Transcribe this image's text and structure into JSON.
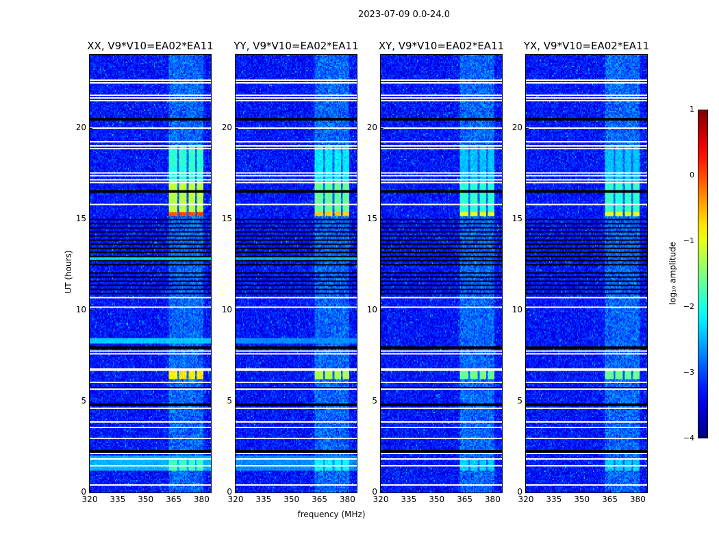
{
  "chart_data": {
    "type": "heatmap",
    "suptitle": "2023-07-09 0.0-24.0",
    "xlabel": "frequency (MHz)",
    "ylabel": "UT (hours)",
    "xlim": [
      320,
      385
    ],
    "ylim": [
      0,
      24
    ],
    "xticks": [
      "320",
      "335",
      "350",
      "365",
      "380"
    ],
    "xtick_values": [
      320,
      335,
      350,
      365,
      380
    ],
    "yticks": [
      "0",
      "5",
      "10",
      "15",
      "20"
    ],
    "ytick_values": [
      0,
      5,
      10,
      15,
      20
    ],
    "panels": [
      {
        "title": "XX, V9*V10=EA02*EA11",
        "event_scale": 1.0,
        "bright_bands": [
          [
            12.7,
            12.95,
            -2.3
          ],
          [
            8.15,
            8.45,
            -2.4
          ],
          [
            1.2,
            2.0,
            -2.5
          ]
        ]
      },
      {
        "title": "YY, V9*V10=EA02*EA11",
        "event_scale": 0.85,
        "bright_bands": [
          [
            12.7,
            12.95,
            -2.5
          ],
          [
            8.15,
            8.45,
            -2.7
          ],
          [
            1.2,
            2.0,
            -2.7
          ]
        ]
      },
      {
        "title": "XY, V9*V10=EA02*EA11",
        "event_scale": 0.75,
        "bright_bands": []
      },
      {
        "title": "YX, V9*V10=EA02*EA11",
        "event_scale": 0.75,
        "bright_bands": []
      }
    ],
    "background_log_amplitude": -3.3,
    "rfi_channels_mhz": [
      [
        362.5,
        367
      ],
      [
        368,
        372
      ],
      [
        373,
        376.5
      ],
      [
        377.5,
        381
      ]
    ],
    "rfi_log_amplitude": -2.5,
    "events": [
      {
        "t": [
          15.4,
          17.0
        ],
        "log_amplitude": -1.2
      },
      {
        "t": [
          15.15,
          15.4
        ],
        "log_amplitude": 0.0
      },
      {
        "t": [
          6.2,
          6.75
        ],
        "log_amplitude": -0.8
      },
      {
        "t": [
          1.2,
          1.9
        ],
        "log_amplitude": -1.8
      },
      {
        "t": [
          17.0,
          19.0
        ],
        "log_amplitude": -1.9
      }
    ],
    "flagged_hours_white": [
      22.6,
      22.44,
      21.8,
      21.65,
      21.5,
      19.96,
      19.21,
      19.02,
      18.87,
      17.49,
      17.34,
      17.15,
      16.96,
      15.76,
      10.69,
      10.13,
      7.77,
      7.58,
      6.75,
      6.04,
      5.63,
      4.62,
      3.86,
      3.56,
      2.96,
      2.14,
      1.84,
      1.46,
      0.41
    ],
    "zero_hours_black": [
      20.45,
      20.5,
      16.5,
      8.0,
      7.95,
      7.9,
      5.75,
      4.8,
      2.25
    ],
    "striped_ranges_hours": [
      [
        12.4,
        15.0
      ],
      [
        10.75,
        12.1
      ]
    ],
    "colorbar": {
      "label": "log₁₀ amplitude",
      "range": [
        -4,
        1
      ],
      "ticks": [
        "1",
        "0",
        "−1",
        "−2",
        "−3",
        "−4"
      ],
      "tick_values": [
        1,
        0,
        -1,
        -2,
        -3,
        -4
      ],
      "colormap": "jet"
    }
  }
}
